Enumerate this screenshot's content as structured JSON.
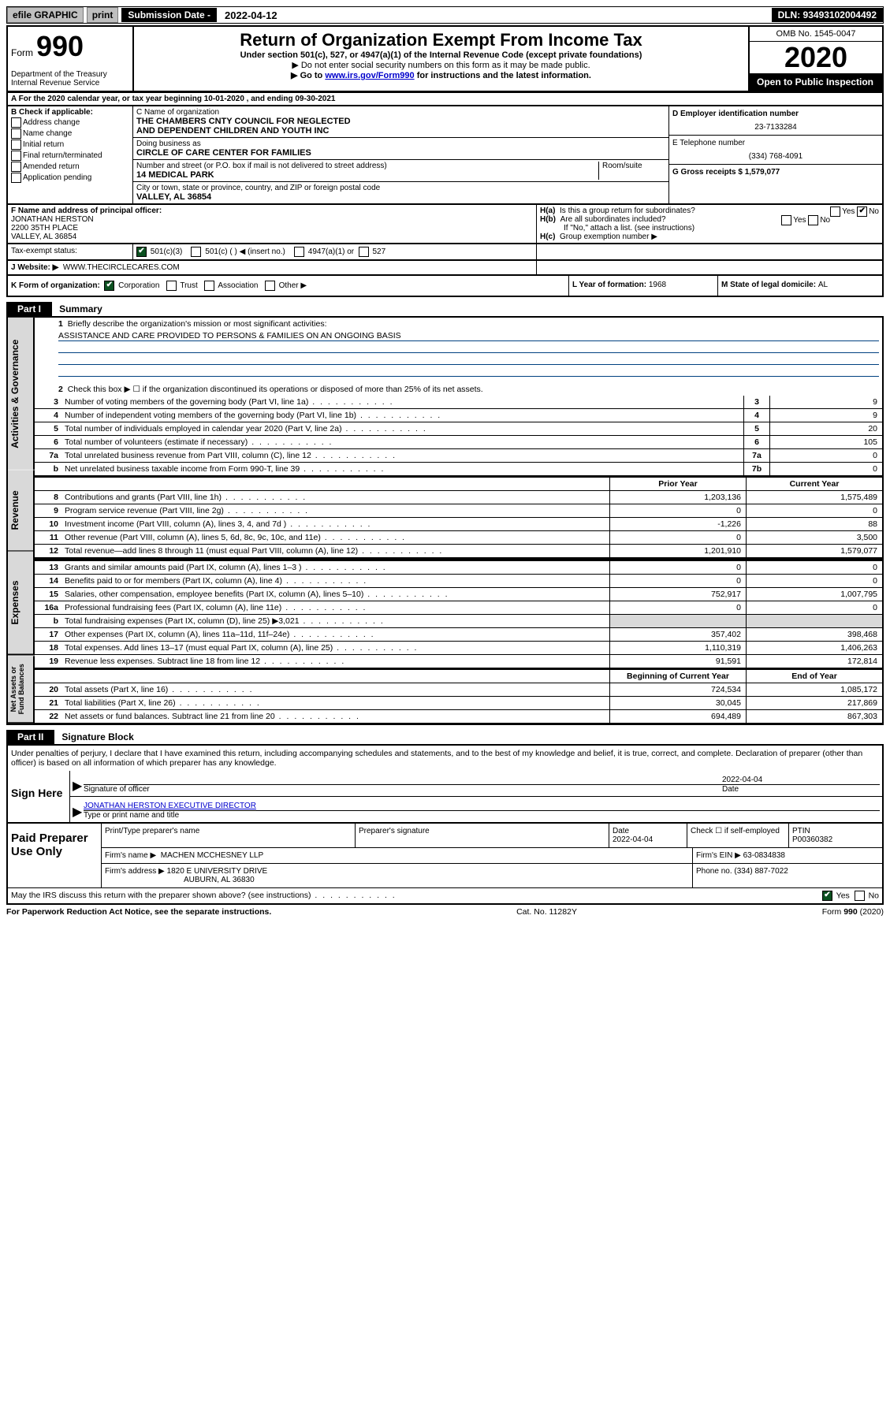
{
  "topbar": {
    "efile": "efile GRAPHIC",
    "print": "print",
    "subdate_label": "Submission Date - ",
    "subdate_val": "2022-04-12",
    "dln": "DLN: 93493102004492"
  },
  "header": {
    "form_word": "Form",
    "form_num": "990",
    "dept": "Department of the Treasury\nInternal Revenue Service",
    "title": "Return of Organization Exempt From Income Tax",
    "sub1": "Under section 501(c), 527, or 4947(a)(1) of the Internal Revenue Code (except private foundations)",
    "sub2": "▶ Do not enter social security numbers on this form as it may be made public.",
    "sub3_pre": "▶ Go to ",
    "sub3_link": "www.irs.gov/Form990",
    "sub3_post": " for instructions and the latest information.",
    "omb": "OMB No. 1545-0047",
    "year": "2020",
    "inspection": "Open to Public Inspection"
  },
  "rowA": {
    "left": "A For the 2020 calendar year, or tax year beginning ",
    "begin": "10-01-2020",
    "mid": "  , and ending ",
    "end": "09-30-2021"
  },
  "checkB": {
    "label": "B Check if applicable:",
    "opts": [
      "Address change",
      "Name change",
      "Initial return",
      "Final return/terminated",
      "Amended return",
      "Application pending"
    ]
  },
  "nameBlock": {
    "c_label": "C Name of organization",
    "name1": "THE CHAMBERS CNTY COUNCIL FOR NEGLECTED",
    "name2": "AND DEPENDENT CHILDREN AND YOUTH INC",
    "dba_label": "Doing business as",
    "dba": "CIRCLE OF CARE CENTER FOR FAMILIES",
    "street_label": "Number and street (or P.O. box if mail is not delivered to street address)",
    "room_label": "Room/suite",
    "street": "14 MEDICAL PARK",
    "city_label": "City or town, state or province, country, and ZIP or foreign postal code",
    "city": "VALLEY, AL  36854"
  },
  "rightBlock": {
    "d_label": "D Employer identification number",
    "ein": "23-7133284",
    "e_label": "E Telephone number",
    "phone": "(334) 768-4091",
    "g_label": "G Gross receipts $ ",
    "g_val": "1,579,077"
  },
  "fBlock": {
    "f_label": "F  Name and address of principal officer:",
    "f_name": "JONATHAN HERSTON",
    "f_addr1": "2200 35TH PLACE",
    "f_addr2": "VALLEY, AL  36854"
  },
  "hBlock": {
    "ha": "Is this a group return for subordinates?",
    "hb": "Are all subordinates included?",
    "hb_note": "If \"No,\" attach a list. (see instructions)",
    "hc": "Group exemption number ▶"
  },
  "taxStatus": {
    "label": "Tax-exempt status:",
    "opt1": "501(c)(3)",
    "opt2": "501(c) (  ) ◀ (insert no.)",
    "opt3": "4947(a)(1) or",
    "opt4": "527"
  },
  "website": {
    "label": "J  Website: ▶",
    "val": "WWW.THECIRCLECARES.COM"
  },
  "rowK": {
    "k_label": "K Form of organization:",
    "opts": [
      "Corporation",
      "Trust",
      "Association",
      "Other ▶"
    ],
    "l_label": "L Year of formation: ",
    "l_val": "1968",
    "m_label": "M State of legal domicile: ",
    "m_val": "AL"
  },
  "part1": {
    "header": "Part I",
    "title": "Summary",
    "tabs": [
      "Activities & Governance",
      "Revenue",
      "Expenses",
      "Net Assets or Fund Balances"
    ],
    "line1_label": "Briefly describe the organization's mission or most significant activities:",
    "mission": "ASSISTANCE AND CARE PROVIDED TO PERSONS & FAMILIES ON AN ONGOING BASIS",
    "line2": "Check this box ▶ ☐  if the organization discontinued its operations or disposed of more than 25% of its net assets.",
    "rows_gov": [
      {
        "n": "3",
        "desc": "Number of voting members of the governing body (Part VI, line 1a)",
        "box": "3",
        "val": "9"
      },
      {
        "n": "4",
        "desc": "Number of independent voting members of the governing body (Part VI, line 1b)",
        "box": "4",
        "val": "9"
      },
      {
        "n": "5",
        "desc": "Total number of individuals employed in calendar year 2020 (Part V, line 2a)",
        "box": "5",
        "val": "20"
      },
      {
        "n": "6",
        "desc": "Total number of volunteers (estimate if necessary)",
        "box": "6",
        "val": "105"
      },
      {
        "n": "7a",
        "desc": "Total unrelated business revenue from Part VIII, column (C), line 12",
        "box": "7a",
        "val": "0"
      },
      {
        "n": "b",
        "desc": "Net unrelated business taxable income from Form 990-T, line 39",
        "box": "7b",
        "val": "0"
      }
    ],
    "col_prior": "Prior Year",
    "col_current": "Current Year",
    "rows_rev": [
      {
        "n": "8",
        "desc": "Contributions and grants (Part VIII, line 1h)",
        "prior": "1,203,136",
        "curr": "1,575,489"
      },
      {
        "n": "9",
        "desc": "Program service revenue (Part VIII, line 2g)",
        "prior": "0",
        "curr": "0"
      },
      {
        "n": "10",
        "desc": "Investment income (Part VIII, column (A), lines 3, 4, and 7d )",
        "prior": "-1,226",
        "curr": "88"
      },
      {
        "n": "11",
        "desc": "Other revenue (Part VIII, column (A), lines 5, 6d, 8c, 9c, 10c, and 11e)",
        "prior": "0",
        "curr": "3,500"
      },
      {
        "n": "12",
        "desc": "Total revenue—add lines 8 through 11 (must equal Part VIII, column (A), line 12)",
        "prior": "1,201,910",
        "curr": "1,579,077"
      }
    ],
    "rows_exp": [
      {
        "n": "13",
        "desc": "Grants and similar amounts paid (Part IX, column (A), lines 1–3 )",
        "prior": "0",
        "curr": "0"
      },
      {
        "n": "14",
        "desc": "Benefits paid to or for members (Part IX, column (A), line 4)",
        "prior": "0",
        "curr": "0"
      },
      {
        "n": "15",
        "desc": "Salaries, other compensation, employee benefits (Part IX, column (A), lines 5–10)",
        "prior": "752,917",
        "curr": "1,007,795"
      },
      {
        "n": "16a",
        "desc": "Professional fundraising fees (Part IX, column (A), line 11e)",
        "prior": "0",
        "curr": "0"
      },
      {
        "n": "b",
        "desc": "Total fundraising expenses (Part IX, column (D), line 25) ▶3,021",
        "prior": "__GREY__",
        "curr": "__GREY__"
      },
      {
        "n": "17",
        "desc": "Other expenses (Part IX, column (A), lines 11a–11d, 11f–24e)",
        "prior": "357,402",
        "curr": "398,468"
      },
      {
        "n": "18",
        "desc": "Total expenses. Add lines 13–17 (must equal Part IX, column (A), line 25)",
        "prior": "1,110,319",
        "curr": "1,406,263"
      },
      {
        "n": "19",
        "desc": "Revenue less expenses. Subtract line 18 from line 12",
        "prior": "91,591",
        "curr": "172,814"
      }
    ],
    "col_begin": "Beginning of Current Year",
    "col_endyr": "End of Year",
    "rows_net": [
      {
        "n": "20",
        "desc": "Total assets (Part X, line 16)",
        "prior": "724,534",
        "curr": "1,085,172"
      },
      {
        "n": "21",
        "desc": "Total liabilities (Part X, line 26)",
        "prior": "30,045",
        "curr": "217,869"
      },
      {
        "n": "22",
        "desc": "Net assets or fund balances. Subtract line 21 from line 20",
        "prior": "694,489",
        "curr": "867,303"
      }
    ]
  },
  "part2": {
    "header": "Part II",
    "title": "Signature Block",
    "penalties": "Under penalties of perjury, I declare that I have examined this return, including accompanying schedules and statements, and to the best of my knowledge and belief, it is true, correct, and complete. Declaration of preparer (other than officer) is based on all information of which preparer has any knowledge.",
    "sign_here": "Sign Here",
    "sig_officer": "Signature of officer",
    "sig_date": "2022-04-04",
    "date_label": "Date",
    "officer_name": "JONATHAN HERSTON  EXECUTIVE DIRECTOR",
    "type_label": "Type or print name and title",
    "paid": "Paid Preparer Use Only",
    "prep_name_label": "Print/Type preparer's name",
    "prep_sig_label": "Preparer's signature",
    "prep_date_label": "Date",
    "prep_date": "2022-04-04",
    "check_label": "Check ☐  if self-employed",
    "ptin_label": "PTIN",
    "ptin": "P00360382",
    "firm_name_label": "Firm's name     ▶",
    "firm_name": "MACHEN MCCHESNEY LLP",
    "firm_ein_label": "Firm's EIN ▶",
    "firm_ein": "63-0834838",
    "firm_addr_label": "Firm's address ▶",
    "firm_addr1": "1820 E UNIVERSITY DRIVE",
    "firm_addr2": "AUBURN, AL  36830",
    "firm_phone_label": "Phone no. ",
    "firm_phone": "(334) 887-7022",
    "discuss": "May the IRS discuss this return with the preparer shown above? (see instructions)"
  },
  "footer": {
    "pra": "For Paperwork Reduction Act Notice, see the separate instructions.",
    "cat": "Cat. No. 11282Y",
    "form": "Form 990 (2020)"
  }
}
